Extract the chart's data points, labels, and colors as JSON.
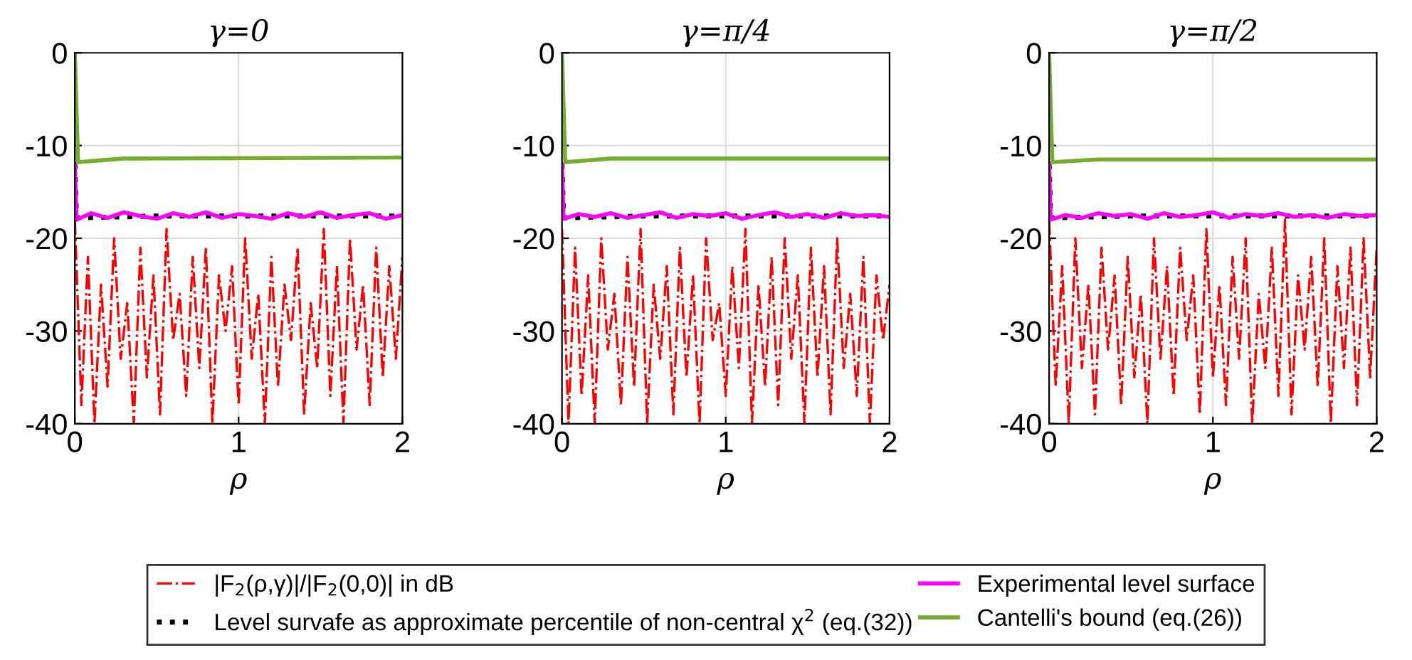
{
  "chart_data": [
    {
      "type": "line",
      "title": "γ=0",
      "xlabel": "ρ",
      "xlim": [
        0,
        2
      ],
      "ylim": [
        -40,
        0
      ],
      "xticks": [
        0,
        1,
        2
      ],
      "yticks": [
        -40,
        -30,
        -20,
        -10,
        0
      ],
      "grid": true,
      "legend": "bottom",
      "series": [
        {
          "name": "|F$_{2}$(ρ,γ)|/|F$_{2}$(0,0)| in dB",
          "color": "#ff0000",
          "line_style": "dashed",
          "x": [
            0,
            0.04,
            0.08,
            0.12,
            0.16,
            0.2,
            0.24,
            0.28,
            0.32,
            0.36,
            0.4,
            0.44,
            0.48,
            0.52,
            0.56,
            0.6,
            0.64,
            0.68,
            0.72,
            0.76,
            0.8,
            0.84,
            0.88,
            0.92,
            0.96,
            1.0,
            1.04,
            1.08,
            1.12,
            1.16,
            1.2,
            1.24,
            1.28,
            1.32,
            1.36,
            1.4,
            1.44,
            1.48,
            1.52,
            1.56,
            1.6,
            1.64,
            1.68,
            1.72,
            1.76,
            1.8,
            1.84,
            1.88,
            1.92,
            1.96,
            2.0
          ],
          "values": [
            -18,
            -38,
            -22,
            -40,
            -25,
            -36,
            -20,
            -33,
            -27,
            -40,
            -21,
            -35,
            -24,
            -39,
            -19,
            -31,
            -26,
            -37,
            -22,
            -34,
            -21,
            -40,
            -24,
            -30,
            -23,
            -38,
            -20,
            -33,
            -26,
            -40,
            -22,
            -36,
            -25,
            -31,
            -21,
            -39,
            -27,
            -34,
            -19,
            -37,
            -23,
            -40,
            -20,
            -32,
            -25,
            -38,
            -21,
            -35,
            -23,
            -33,
            -22
          ]
        },
        {
          "name": "Level survafe as approximate percentile of non-central χ$^{2}$ (eq.(32))",
          "color": "#000000",
          "line_style": "dotted",
          "x": [
            0,
            0.01,
            0.5,
            1,
            1.5,
            2
          ],
          "values": [
            -12,
            -17.8,
            -17.6,
            -17.6,
            -17.6,
            -17.6
          ]
        },
        {
          "name": "Experimental level surface",
          "color": "#ff00ff",
          "line_style": "solid",
          "x": [
            0,
            0.01,
            0.1,
            0.2,
            0.3,
            0.4,
            0.5,
            0.6,
            0.7,
            0.8,
            0.9,
            1.0,
            1.1,
            1.2,
            1.3,
            1.4,
            1.5,
            1.6,
            1.7,
            1.8,
            1.9,
            2.0
          ],
          "values": [
            -12,
            -18,
            -17.3,
            -17.8,
            -17.2,
            -17.6,
            -17.9,
            -17.3,
            -17.7,
            -17.2,
            -17.8,
            -17.4,
            -17.6,
            -17.9,
            -17.3,
            -17.7,
            -17.2,
            -17.8,
            -17.5,
            -17.3,
            -17.9,
            -17.5
          ]
        },
        {
          "name": "Cantelli's bound (eq.(26))",
          "color": "#77ac30",
          "line_style": "solid",
          "x": [
            0,
            0.02,
            0.3,
            2
          ],
          "values": [
            0,
            -11.8,
            -11.4,
            -11.3
          ]
        }
      ]
    },
    {
      "type": "line",
      "title": "γ=π/4",
      "xlabel": "ρ",
      "xlim": [
        0,
        2
      ],
      "ylim": [
        -40,
        0
      ],
      "xticks": [
        0,
        1,
        2
      ],
      "yticks": [
        -40,
        -30,
        -20,
        -10,
        0
      ],
      "grid": true,
      "series": [
        {
          "color": "#ff0000",
          "line_style": "dashed",
          "x": [
            0,
            0.04,
            0.08,
            0.12,
            0.16,
            0.2,
            0.24,
            0.28,
            0.32,
            0.36,
            0.4,
            0.44,
            0.48,
            0.52,
            0.56,
            0.6,
            0.64,
            0.68,
            0.72,
            0.76,
            0.8,
            0.84,
            0.88,
            0.92,
            0.96,
            1.0,
            1.04,
            1.08,
            1.12,
            1.16,
            1.2,
            1.24,
            1.28,
            1.32,
            1.36,
            1.4,
            1.44,
            1.48,
            1.52,
            1.56,
            1.6,
            1.64,
            1.68,
            1.72,
            1.76,
            1.8,
            1.84,
            1.88,
            1.92,
            1.96,
            2.0
          ],
          "values": [
            -19,
            -40,
            -21,
            -37,
            -24,
            -40,
            -20,
            -32,
            -26,
            -38,
            -22,
            -36,
            -19,
            -40,
            -25,
            -33,
            -23,
            -39,
            -21,
            -35,
            -24,
            -40,
            -20,
            -31,
            -27,
            -37,
            -23,
            -34,
            -19,
            -40,
            -25,
            -36,
            -22,
            -38,
            -20,
            -33,
            -24,
            -40,
            -21,
            -35,
            -23,
            -39,
            -20,
            -34,
            -26,
            -37,
            -22,
            -40,
            -24,
            -31,
            -25
          ]
        },
        {
          "color": "#000000",
          "line_style": "dotted",
          "x": [
            0,
            0.01,
            0.5,
            1,
            1.5,
            2
          ],
          "values": [
            -12,
            -17.8,
            -17.6,
            -17.6,
            -17.6,
            -17.6
          ]
        },
        {
          "color": "#ff00ff",
          "line_style": "solid",
          "x": [
            0,
            0.01,
            0.1,
            0.2,
            0.3,
            0.4,
            0.5,
            0.6,
            0.7,
            0.8,
            0.9,
            1.0,
            1.1,
            1.2,
            1.3,
            1.4,
            1.5,
            1.6,
            1.7,
            1.8,
            1.9,
            2.0
          ],
          "values": [
            -12,
            -17.9,
            -17.4,
            -17.7,
            -17.3,
            -17.8,
            -17.5,
            -17.2,
            -17.8,
            -17.4,
            -17.6,
            -17.3,
            -17.9,
            -17.5,
            -17.2,
            -17.7,
            -17.4,
            -17.8,
            -17.3,
            -17.6,
            -17.5,
            -17.7
          ]
        },
        {
          "color": "#77ac30",
          "line_style": "solid",
          "x": [
            0,
            0.02,
            0.3,
            2
          ],
          "values": [
            0,
            -11.8,
            -11.4,
            -11.4
          ]
        }
      ]
    },
    {
      "type": "line",
      "title": "γ=π/2",
      "xlabel": "ρ",
      "xlim": [
        0,
        2
      ],
      "ylim": [
        -40,
        0
      ],
      "xticks": [
        0,
        1,
        2
      ],
      "yticks": [
        -40,
        -30,
        -20,
        -10,
        0
      ],
      "grid": true,
      "series": [
        {
          "color": "#ff0000",
          "line_style": "dashed",
          "x": [
            0,
            0.04,
            0.08,
            0.12,
            0.16,
            0.2,
            0.24,
            0.28,
            0.32,
            0.36,
            0.4,
            0.44,
            0.48,
            0.52,
            0.56,
            0.6,
            0.64,
            0.68,
            0.72,
            0.76,
            0.8,
            0.84,
            0.88,
            0.92,
            0.96,
            1.0,
            1.04,
            1.08,
            1.12,
            1.16,
            1.2,
            1.24,
            1.28,
            1.32,
            1.36,
            1.4,
            1.44,
            1.48,
            1.52,
            1.56,
            1.6,
            1.64,
            1.68,
            1.72,
            1.76,
            1.8,
            1.84,
            1.88,
            1.92,
            1.96,
            2.0
          ],
          "values": [
            -18,
            -36,
            -23,
            -40,
            -20,
            -34,
            -25,
            -39,
            -21,
            -32,
            -24,
            -38,
            -22,
            -35,
            -26,
            -40,
            -20,
            -33,
            -23,
            -37,
            -21,
            -31,
            -24,
            -39,
            -19,
            -35,
            -25,
            -38,
            -22,
            -33,
            -20,
            -40,
            -26,
            -34,
            -21,
            -37,
            -18,
            -39,
            -24,
            -32,
            -22,
            -36,
            -20,
            -40,
            -23,
            -34,
            -21,
            -38,
            -20,
            -35,
            -21
          ]
        },
        {
          "color": "#000000",
          "line_style": "dotted",
          "x": [
            0,
            0.01,
            0.5,
            1,
            1.5,
            2
          ],
          "values": [
            -12,
            -17.8,
            -17.6,
            -17.6,
            -17.6,
            -17.6
          ]
        },
        {
          "color": "#ff00ff",
          "line_style": "solid",
          "x": [
            0,
            0.01,
            0.1,
            0.2,
            0.3,
            0.4,
            0.5,
            0.6,
            0.7,
            0.8,
            0.9,
            1.0,
            1.1,
            1.2,
            1.3,
            1.4,
            1.5,
            1.6,
            1.7,
            1.8,
            1.9,
            2.0
          ],
          "values": [
            -12,
            -18,
            -17.5,
            -17.8,
            -17.3,
            -17.6,
            -17.4,
            -17.9,
            -17.3,
            -17.7,
            -17.5,
            -17.2,
            -17.8,
            -17.4,
            -17.6,
            -17.3,
            -17.7,
            -17.5,
            -17.8,
            -17.4,
            -17.6,
            -17.5
          ]
        },
        {
          "color": "#77ac30",
          "line_style": "solid",
          "x": [
            0,
            0.02,
            0.3,
            2
          ],
          "values": [
            0,
            -11.8,
            -11.5,
            -11.5
          ]
        }
      ]
    }
  ]
}
